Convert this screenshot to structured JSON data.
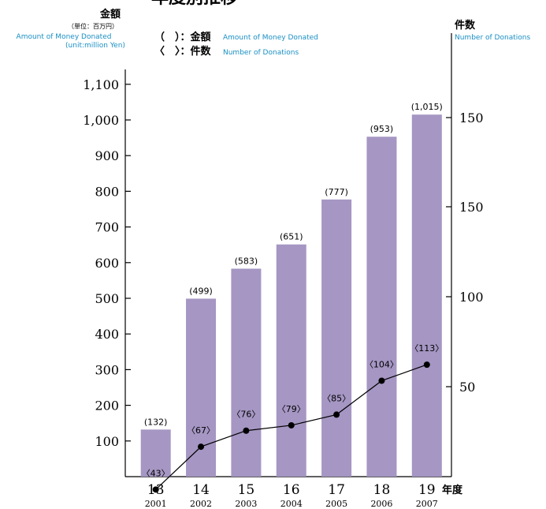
{
  "chart_data": {
    "type": "bar",
    "title": "年度別推移",
    "left_axis": {
      "title": "金額",
      "unit_jp": "（単位：百万円）",
      "title_en_line1": "Amount of Money Donated",
      "title_en_line2": "(unit:million Yen)",
      "ticks": [
        "100",
        "200",
        "300",
        "400",
        "500",
        "600",
        "700",
        "800",
        "900",
        "1,000",
        "1,100"
      ],
      "ylim": [
        0,
        1200
      ]
    },
    "right_axis": {
      "title": "件数",
      "title_en": "Number of Donations",
      "ticks": [
        "50",
        "100",
        "150",
        "150"
      ]
    },
    "legend": {
      "money_symbol": "（　）：金額",
      "money_en": "Amount of Money Donated",
      "count_symbol": "〈　〉：件数",
      "count_en": "Number of Donations"
    },
    "x_axis": {
      "title": "年度",
      "categories": [
        "13",
        "14",
        "15",
        "16",
        "17",
        "18",
        "19"
      ],
      "years": [
        "2001",
        "2002",
        "2003",
        "2004",
        "2005",
        "2006",
        "2007"
      ]
    },
    "series": [
      {
        "name": "金額",
        "type": "bar",
        "values": [
          132,
          499,
          583,
          651,
          777,
          953,
          1015
        ],
        "labels": [
          "(132)",
          "(499)",
          "(583)",
          "(651)",
          "(777)",
          "(953)",
          "(1,015)"
        ],
        "color": "#a596c3"
      },
      {
        "name": "件数",
        "type": "line",
        "values": [
          43,
          67,
          76,
          79,
          85,
          104,
          113
        ],
        "labels": [
          "〈43〉",
          "〈67〉",
          "〈76〉",
          "〈79〉",
          "〈85〉",
          "〈104〉",
          "〈113〉"
        ],
        "color": "#000000"
      }
    ],
    "colors": {
      "bar": "#a596c3",
      "accent_text": "#1a8fc4",
      "axis": "#000000"
    }
  }
}
